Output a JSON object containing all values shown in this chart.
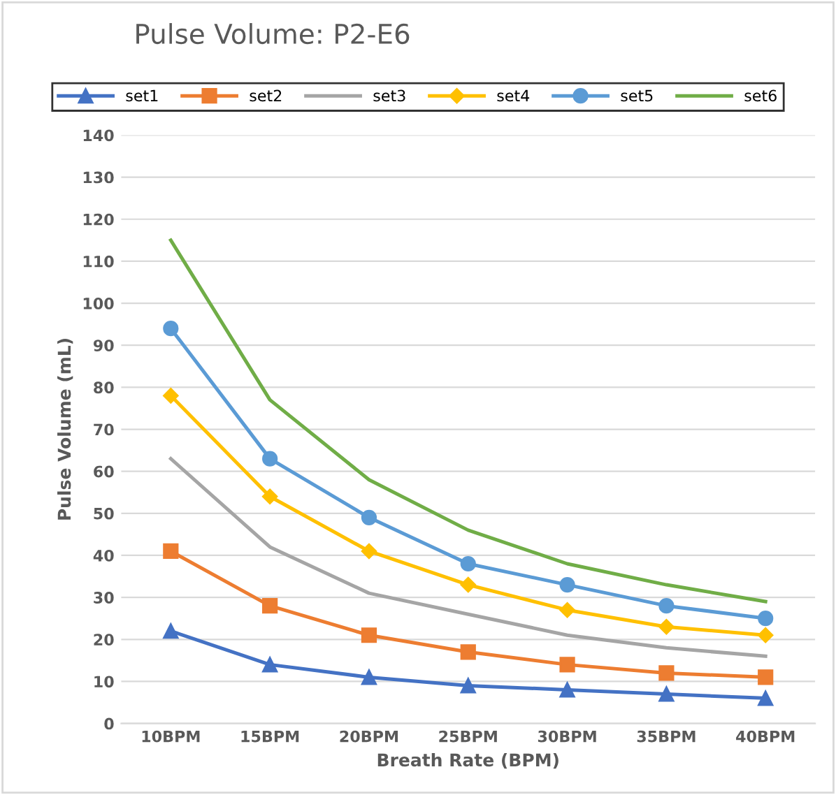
{
  "chart_data": {
    "type": "line",
    "title": "Pulse Volume: P2-E6",
    "xlabel": "Breath Rate (BPM)",
    "ylabel": "Pulse Volume (mL)",
    "categories": [
      "10BPM",
      "15BPM",
      "20BPM",
      "25BPM",
      "30BPM",
      "35BPM",
      "40BPM"
    ],
    "series": [
      {
        "name": "set1",
        "color": "#4472c4",
        "marker": "triangle",
        "values": [
          22,
          14,
          11,
          9,
          8,
          7,
          6
        ]
      },
      {
        "name": "set2",
        "color": "#ed7d31",
        "marker": "square",
        "values": [
          41,
          28,
          21,
          17,
          14,
          12,
          11
        ]
      },
      {
        "name": "set3",
        "color": "#a5a5a5",
        "marker": "none",
        "values": [
          63,
          42,
          31,
          26,
          21,
          18,
          16
        ]
      },
      {
        "name": "set4",
        "color": "#ffc000",
        "marker": "diamond",
        "values": [
          78,
          54,
          41,
          33,
          27,
          23,
          21
        ]
      },
      {
        "name": "set5",
        "color": "#5b9bd5",
        "marker": "circle",
        "values": [
          94,
          63,
          49,
          38,
          33,
          28,
          25
        ]
      },
      {
        "name": "set6",
        "color": "#70ad47",
        "marker": "none",
        "values": [
          115,
          77,
          58,
          46,
          38,
          33,
          29
        ]
      }
    ],
    "ylim": [
      0,
      140
    ],
    "yticks": [
      0,
      10,
      20,
      30,
      40,
      50,
      60,
      70,
      80,
      90,
      100,
      110,
      120,
      130,
      140
    ],
    "grid": "y",
    "legend": "top"
  }
}
